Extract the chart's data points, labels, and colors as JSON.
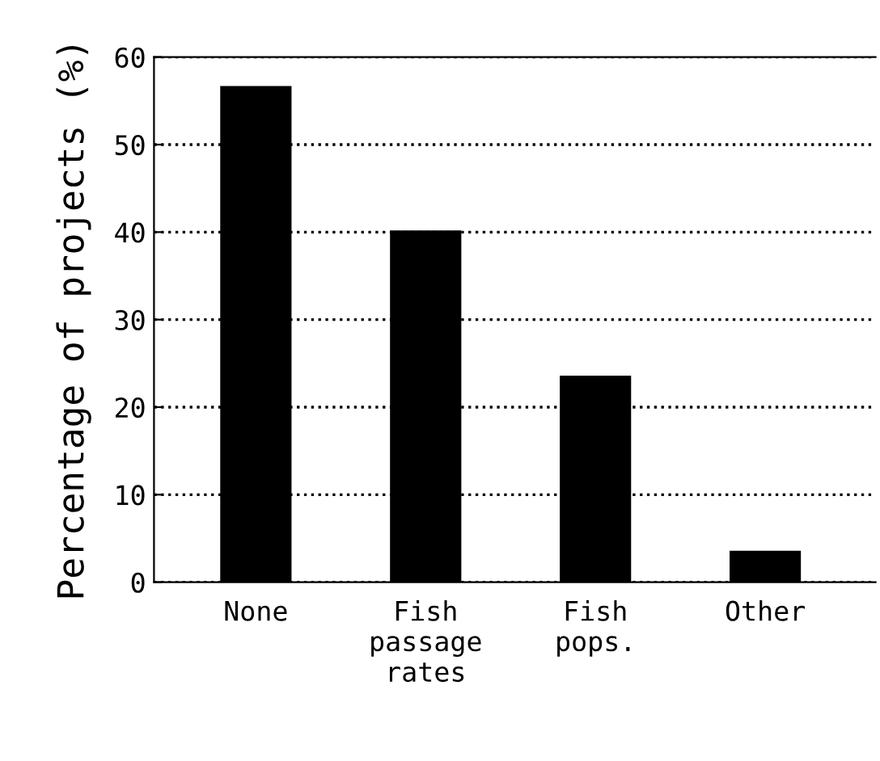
{
  "chart_data": {
    "type": "bar",
    "ylabel": "Percentage of projects (%)",
    "categories": [
      "None",
      "Fish\npassage\nrates",
      "Fish\npops.",
      "Other"
    ],
    "values": [
      56.7,
      40.2,
      23.6,
      3.6
    ],
    "color": "#000000",
    "ylim": [
      0,
      60
    ],
    "yticks": [
      0,
      10,
      20,
      30,
      40,
      50,
      60
    ],
    "grid": "y"
  }
}
